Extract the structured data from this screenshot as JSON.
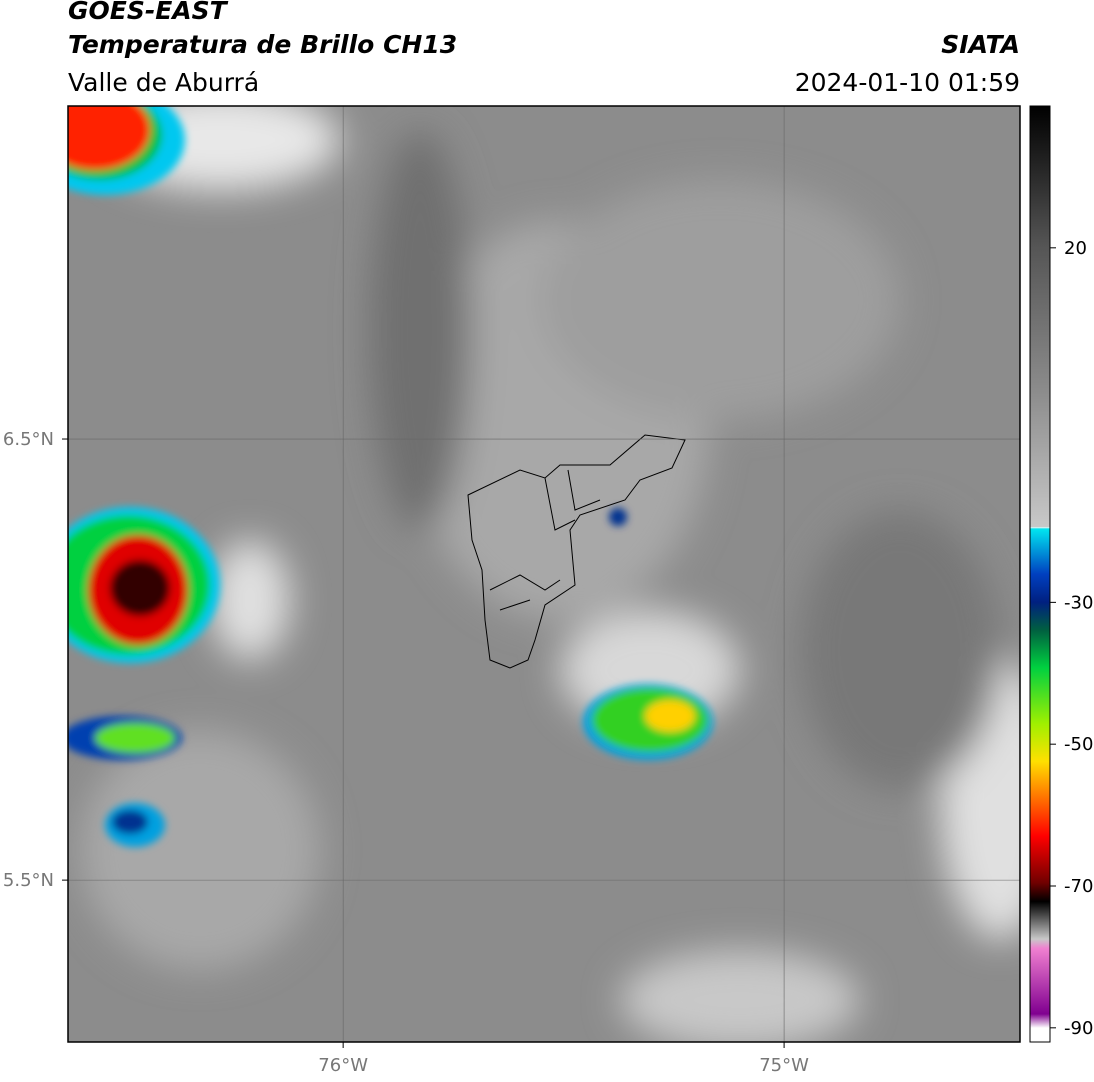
{
  "header": {
    "title": "GOES-EAST",
    "subtitle": "Temperatura de Brillo CH13",
    "region": "Valle de Aburrá",
    "source": "SIATA",
    "datetime": "2024-01-10 01:59"
  },
  "map": {
    "latlim": [
      5.133,
      7.255
    ],
    "lonlim": [
      -76.624,
      -74.465
    ],
    "lat_ticks": [
      {
        "value": 6.5,
        "label": "6.5°N"
      },
      {
        "value": 5.5,
        "label": "5.5°N"
      }
    ],
    "lon_ticks": [
      {
        "value": -76,
        "label": "76°W"
      },
      {
        "value": -75,
        "label": "75°W"
      }
    ],
    "grid": true
  },
  "colorbar": {
    "range": [
      -92,
      40
    ],
    "ticks": [
      20,
      -30,
      -50,
      -70,
      -90
    ]
  }
}
